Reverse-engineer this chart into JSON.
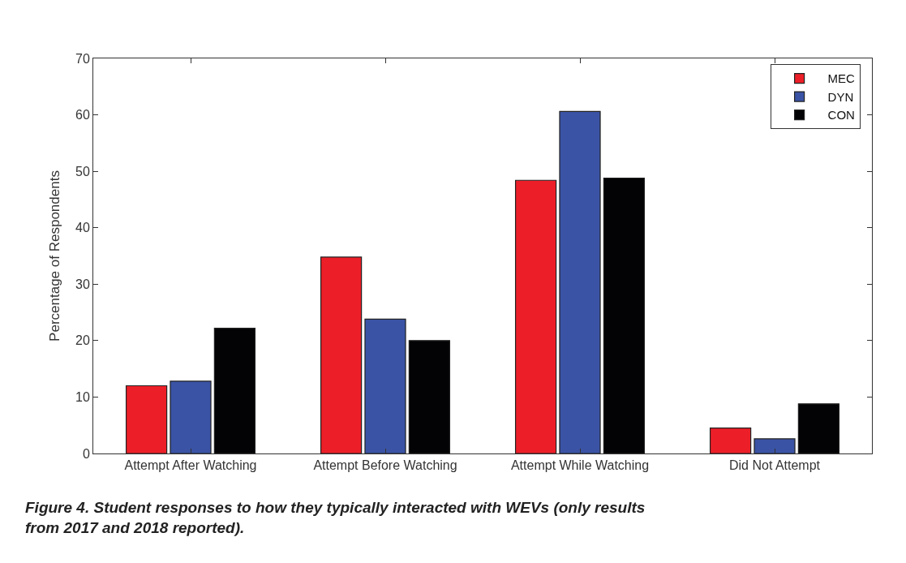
{
  "chart_data": {
    "type": "bar",
    "categories": [
      "Attempt After Watching",
      "Attempt Before Watching",
      "Attempt While Watching",
      "Did Not Attempt"
    ],
    "series": [
      {
        "name": "MEC",
        "color": "#ec1f28",
        "values": [
          12.0,
          34.8,
          48.4,
          4.5
        ]
      },
      {
        "name": "DYN",
        "color": "#3a53a4",
        "values": [
          12.8,
          23.8,
          60.6,
          2.6
        ]
      },
      {
        "name": "CON",
        "color": "#030305",
        "values": [
          22.2,
          20.0,
          48.8,
          8.8
        ]
      }
    ],
    "ylabel": "Percentage of Respondents",
    "ylim": [
      0,
      70
    ],
    "yticks": [
      0,
      10,
      20,
      30,
      40,
      50,
      60,
      70
    ],
    "legend": "top right",
    "annotations": [
      "Figure 4. Student responses to how they typically interacted with WEVs (only results from 2017 and 2018 reported)."
    ]
  }
}
